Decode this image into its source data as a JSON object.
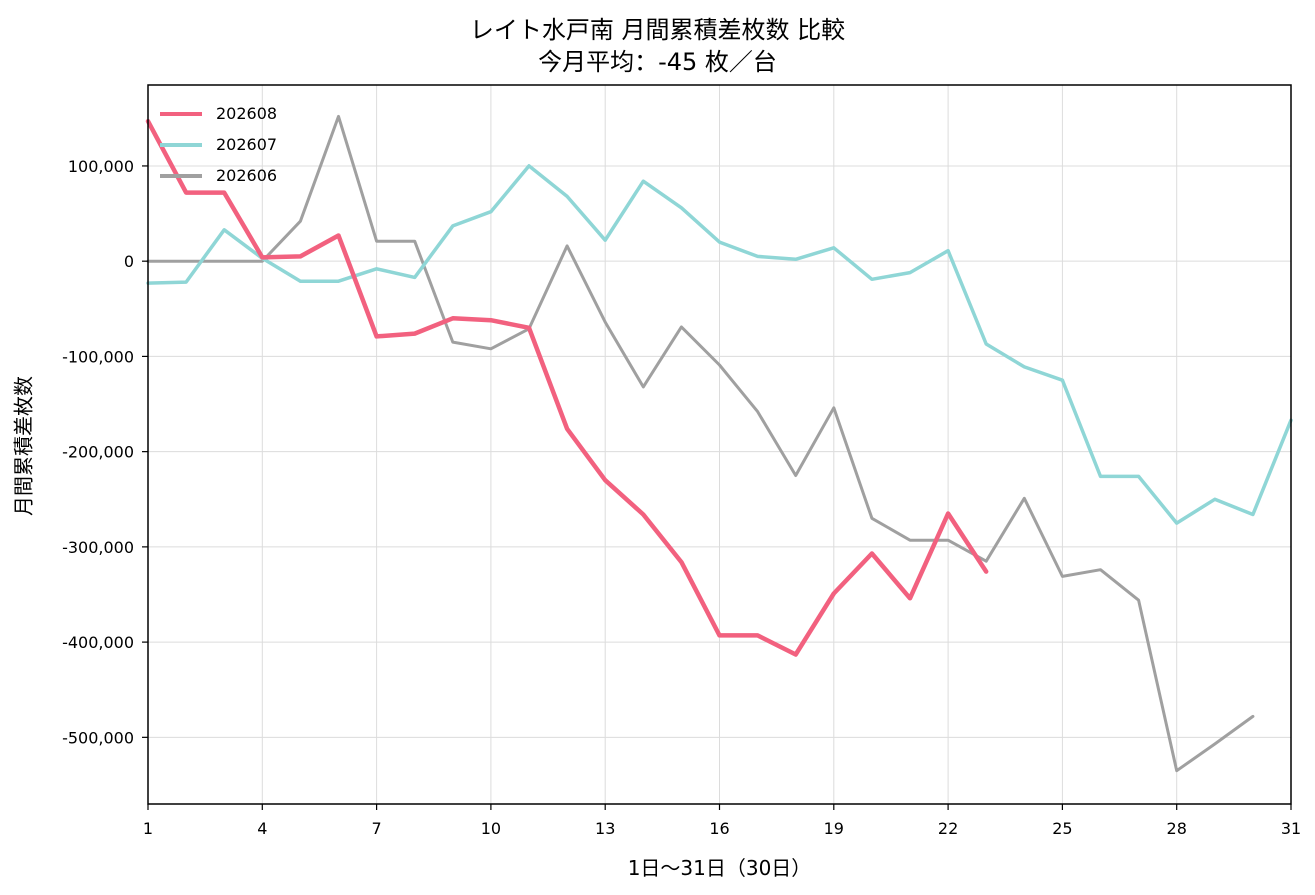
{
  "title": "レイト水戸南 月間累積差枚数 比較",
  "subtitle": "今月平均：-45 枚／台",
  "colors": {
    "202608": "#f2617f",
    "202607": "#8fd6d6",
    "202606": "#a0a0a0"
  },
  "chart_data": {
    "type": "line",
    "title": "レイト水戸南 月間累積差枚数 比較",
    "subtitle": "今月平均：-45 枚／台",
    "xlabel": "1日〜31日（30日）",
    "ylabel": "月間累積差枚数",
    "xlim": [
      1,
      31
    ],
    "ylim": [
      -570000,
      185000
    ],
    "xticks": [
      1,
      4,
      7,
      10,
      13,
      16,
      19,
      22,
      25,
      28,
      31
    ],
    "yticks": [
      100000,
      0,
      -100000,
      -200000,
      -300000,
      -400000,
      -500000
    ],
    "grid": true,
    "legend_position": "top-left",
    "series": [
      {
        "name": "202608",
        "color": "#f2617f",
        "x": [
          1,
          2,
          3,
          4,
          5,
          6,
          7,
          8,
          9,
          10,
          11,
          12,
          13,
          14,
          15,
          16,
          17,
          18,
          19,
          20,
          21,
          22,
          23
        ],
        "values": [
          147000,
          72000,
          72000,
          4000,
          5000,
          27000,
          -79000,
          -76000,
          -60000,
          -62000,
          -70000,
          -176000,
          -230000,
          -266000,
          -316000,
          -393000,
          -393000,
          -413000,
          -349000,
          -307000,
          -354000,
          -265000,
          -326000
        ]
      },
      {
        "name": "202607",
        "color": "#8fd6d6",
        "x": [
          1,
          2,
          3,
          4,
          5,
          6,
          7,
          8,
          9,
          10,
          11,
          12,
          13,
          14,
          15,
          16,
          17,
          18,
          19,
          20,
          21,
          22,
          23,
          24,
          25,
          26,
          27,
          28,
          29,
          30,
          31
        ],
        "values": [
          -23000,
          -22000,
          33000,
          3000,
          -21000,
          -21000,
          -8000,
          -17000,
          37000,
          52000,
          100000,
          68000,
          22000,
          84000,
          56000,
          20000,
          5000,
          2000,
          14000,
          -19000,
          -12000,
          11000,
          -87000,
          -111000,
          -125000,
          -226000,
          -226000,
          -275000,
          -250000,
          -266000,
          -167000
        ]
      },
      {
        "name": "202606",
        "color": "#a0a0a0",
        "x": [
          1,
          2,
          3,
          4,
          5,
          6,
          7,
          8,
          9,
          10,
          11,
          12,
          13,
          14,
          15,
          16,
          17,
          18,
          19,
          20,
          21,
          22,
          23,
          24,
          25,
          26,
          27,
          28,
          29,
          30
        ],
        "values": [
          0,
          0,
          0,
          0,
          42000,
          152000,
          21000,
          21000,
          -85000,
          -92000,
          -71000,
          16000,
          -64000,
          -132000,
          -69000,
          -109000,
          -158000,
          -225000,
          -154000,
          -270000,
          -293000,
          -293000,
          -315000,
          -249000,
          -331000,
          -324000,
          -356000,
          -535000,
          -507000,
          -478000
        ]
      }
    ]
  }
}
